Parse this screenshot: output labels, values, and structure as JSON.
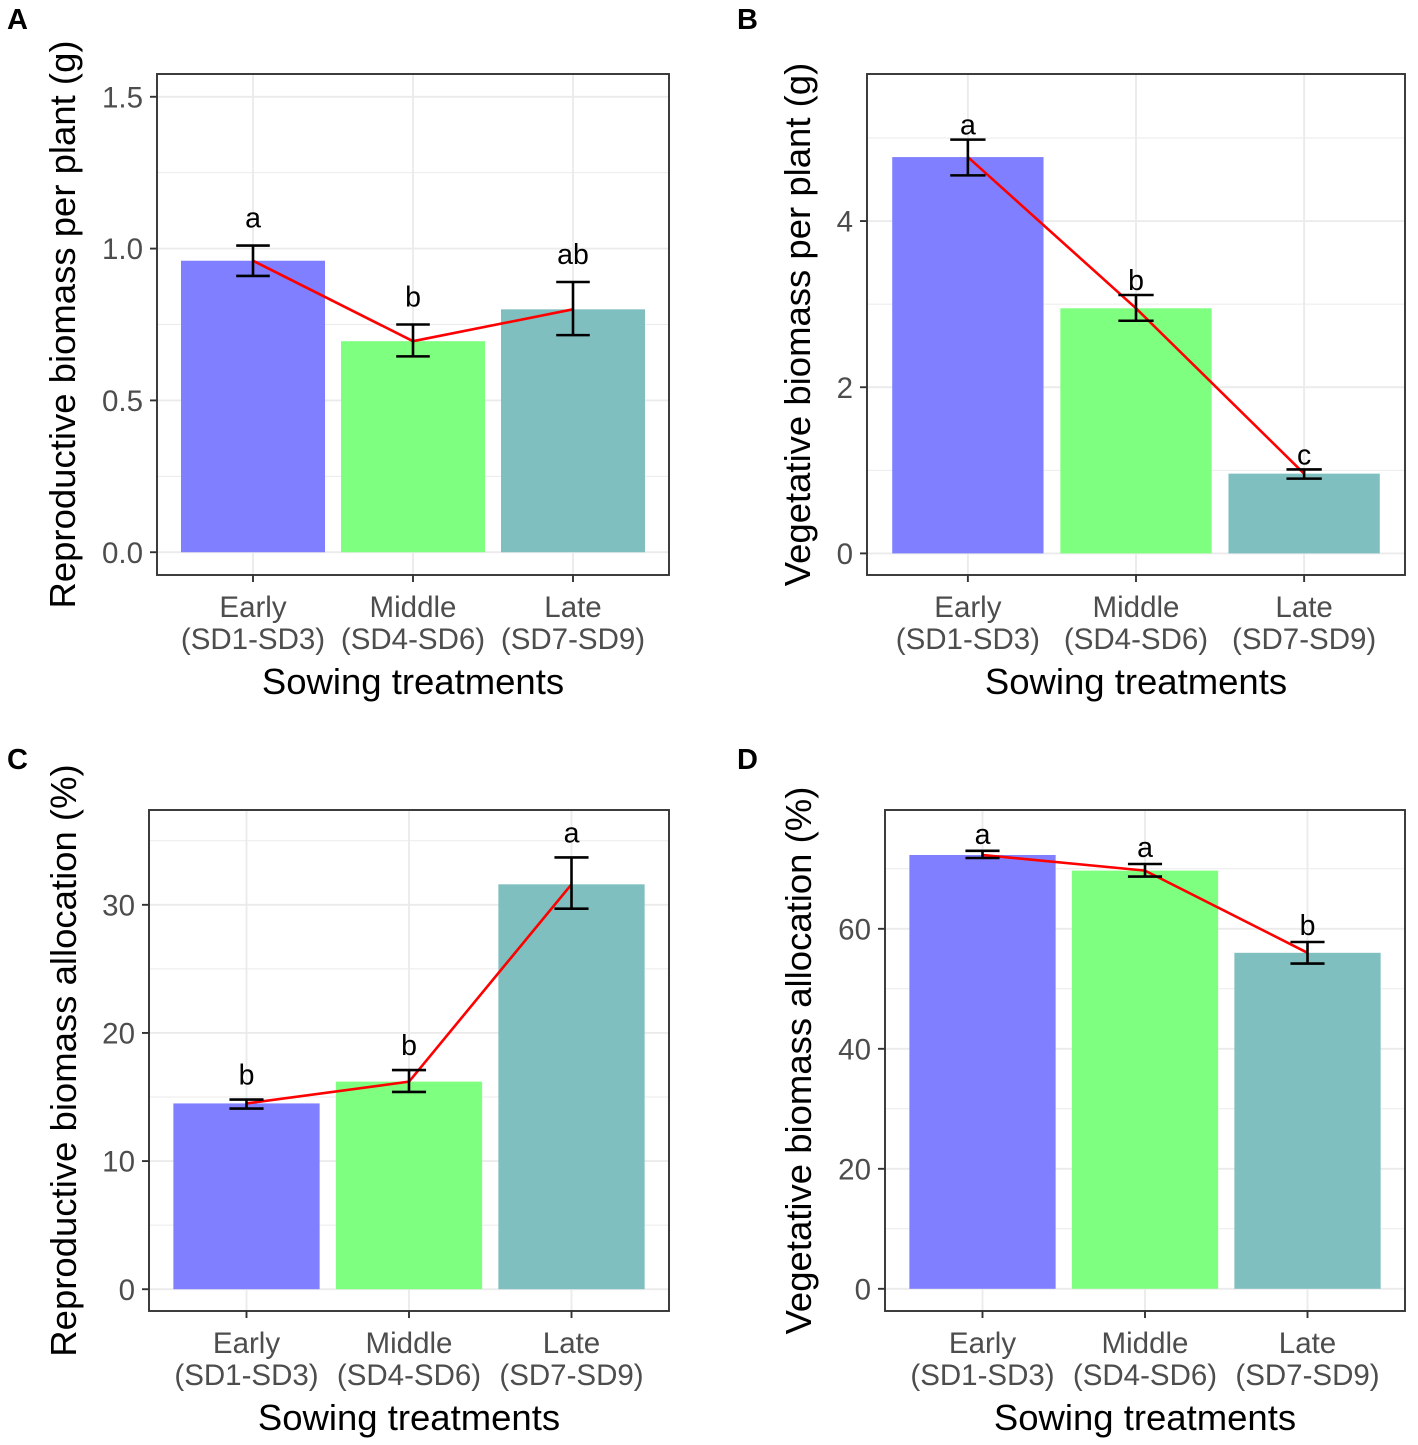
{
  "colors": {
    "bars": [
      "#7f7fff",
      "#7fff7f",
      "#7fbfbf"
    ],
    "mean_line": "#ff0000",
    "error_bars": "#000000",
    "grid": "#ebebeb",
    "border": "#333333",
    "tick_text": "#4d4d4d"
  },
  "chart_data": [
    {
      "panel": "A",
      "type": "bar",
      "categories": [
        "Early",
        "Middle",
        "Late"
      ],
      "category_sublabels": [
        "(SD1-SD3)",
        "(SD4-SD6)",
        "(SD7-SD9)"
      ],
      "values": [
        0.96,
        0.695,
        0.8
      ],
      "error_upper": [
        1.01,
        0.75,
        0.89
      ],
      "error_lower": [
        0.91,
        0.645,
        0.715
      ],
      "significance_letters": [
        "a",
        "b",
        "ab"
      ],
      "mean_line": true,
      "xlabel": "Sowing treatments",
      "ylabel": "Reproductive biomass per plant (g)",
      "ylim": [
        -0.075,
        1.575
      ],
      "yticks": [
        0,
        0.5,
        1.0,
        1.5
      ],
      "ytick_labels": [
        "0.0",
        "0.5",
        "1.0",
        "1.5"
      ],
      "grid": true
    },
    {
      "panel": "B",
      "type": "bar",
      "categories": [
        "Early",
        "Middle",
        "Late"
      ],
      "category_sublabels": [
        "(SD1-SD3)",
        "(SD4-SD6)",
        "(SD7-SD9)"
      ],
      "values": [
        4.77,
        2.95,
        0.96
      ],
      "error_upper": [
        4.98,
        3.11,
        1.01
      ],
      "error_lower": [
        4.55,
        2.8,
        0.9
      ],
      "significance_letters": [
        "a",
        "b",
        "c"
      ],
      "mean_line": true,
      "xlabel": "Sowing treatments",
      "ylabel": "Vegetative biomass per plant (g)",
      "ylim": [
        -0.26,
        5.77
      ],
      "yticks": [
        0,
        2,
        4
      ],
      "ytick_labels": [
        "0",
        "2",
        "4"
      ],
      "grid": true
    },
    {
      "panel": "C",
      "type": "bar",
      "categories": [
        "Early",
        "Middle",
        "Late"
      ],
      "category_sublabels": [
        "(SD1-SD3)",
        "(SD4-SD6)",
        "(SD7-SD9)"
      ],
      "values": [
        14.5,
        16.2,
        31.6
      ],
      "error_upper": [
        14.8,
        17.1,
        33.7
      ],
      "error_lower": [
        14.1,
        15.4,
        29.7
      ],
      "significance_letters": [
        "b",
        "b",
        "a"
      ],
      "mean_line": true,
      "xlabel": "Sowing treatments",
      "ylabel": "Reproductive biomass allocation (%)",
      "ylim": [
        -1.7,
        37.4
      ],
      "yticks": [
        0,
        10,
        20,
        30
      ],
      "ytick_labels": [
        "0",
        "10",
        "20",
        "30"
      ],
      "grid": true
    },
    {
      "panel": "D",
      "type": "bar",
      "categories": [
        "Early",
        "Middle",
        "Late"
      ],
      "category_sublabels": [
        "(SD1-SD3)",
        "(SD4-SD6)",
        "(SD7-SD9)"
      ],
      "values": [
        72.3,
        69.7,
        56.0
      ],
      "error_upper": [
        73.0,
        70.8,
        57.8
      ],
      "error_lower": [
        71.8,
        68.7,
        54.2
      ],
      "significance_letters": [
        "a",
        "a",
        "b"
      ],
      "mean_line": true,
      "xlabel": "Sowing treatments",
      "ylabel": "Vegetative biomass allocation (%)",
      "ylim": [
        -3.7,
        79.8
      ],
      "yticks": [
        0,
        20,
        40,
        60
      ],
      "ytick_labels": [
        "0",
        "20",
        "40",
        "60"
      ],
      "grid": true
    }
  ]
}
